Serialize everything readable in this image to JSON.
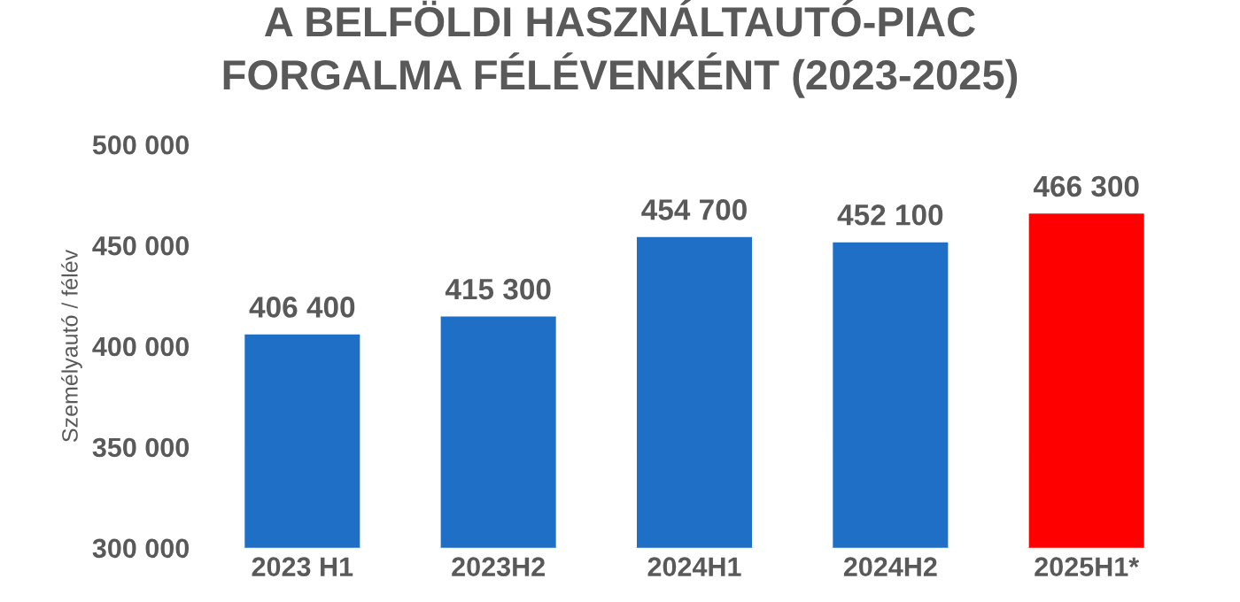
{
  "chart_data": {
    "type": "bar",
    "title": "A BELFÖLDI HASZNÁLTAUTÓ-PIAC\nFORGALMA FÉLÉVENKÉNT (2023-2025)",
    "ylabel": "Személyautó / félév",
    "categories": [
      "2023 H1",
      "2023H2",
      "2024H1",
      "2024H2",
      "2025H1*"
    ],
    "values": [
      406400,
      415300,
      454700,
      452100,
      466300
    ],
    "colors": [
      "#1f6fc6",
      "#1f6fc6",
      "#1f6fc6",
      "#1f6fc6",
      "#ff0000"
    ],
    "value_labels": [
      "406 400",
      "415 300",
      "454 700",
      "452 100",
      "466 300"
    ],
    "ylim": [
      300000,
      500000
    ],
    "yticks": [
      {
        "value": 300000,
        "label": "300 000"
      },
      {
        "value": 350000,
        "label": "350 000"
      },
      {
        "value": 400000,
        "label": "400 000"
      },
      {
        "value": 450000,
        "label": "450 000"
      },
      {
        "value": 500000,
        "label": "500 000"
      }
    ],
    "grid": false,
    "legend": false
  }
}
